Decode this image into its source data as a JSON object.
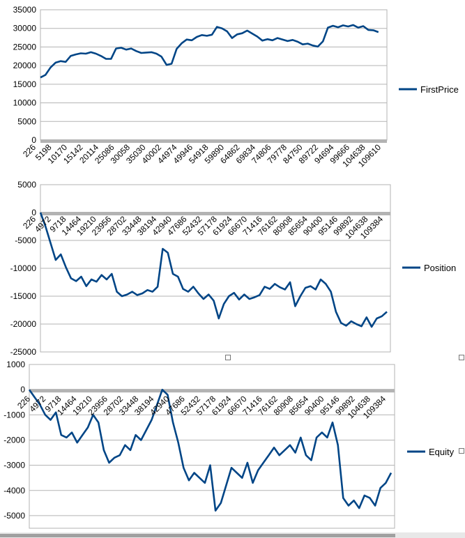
{
  "chart_data": [
    {
      "type": "line",
      "series": [
        {
          "name": "FirstPrice",
          "color": "#004586"
        }
      ],
      "ylim": [
        0,
        35000
      ],
      "yticks": [
        0,
        5000,
        10000,
        15000,
        20000,
        25000,
        30000,
        35000
      ],
      "xticks": [
        "226",
        "5198",
        "10170",
        "15142",
        "20114",
        "25086",
        "30058",
        "35030",
        "40002",
        "44974",
        "49946",
        "54918",
        "59890",
        "64862",
        "69834",
        "74806",
        "79778",
        "84750",
        "89722",
        "94694",
        "99666",
        "104638",
        "109610"
      ],
      "grid": true,
      "legend_position": "right",
      "points": [
        [
          0,
          16800
        ],
        [
          2,
          17500
        ],
        [
          4,
          19500
        ],
        [
          6,
          20800
        ],
        [
          8,
          21200
        ],
        [
          10,
          21000
        ],
        [
          12,
          22600
        ],
        [
          14,
          23000
        ],
        [
          16,
          23300
        ],
        [
          18,
          23200
        ],
        [
          20,
          23600
        ],
        [
          22,
          23200
        ],
        [
          24,
          22600
        ],
        [
          26,
          21800
        ],
        [
          28,
          21800
        ],
        [
          30,
          24600
        ],
        [
          32,
          24800
        ],
        [
          34,
          24300
        ],
        [
          36,
          24600
        ],
        [
          38,
          23900
        ],
        [
          40,
          23400
        ],
        [
          42,
          23500
        ],
        [
          44,
          23600
        ],
        [
          46,
          23200
        ],
        [
          48,
          22400
        ],
        [
          50,
          20200
        ],
        [
          52,
          20500
        ],
        [
          54,
          24500
        ],
        [
          56,
          26000
        ],
        [
          58,
          27000
        ],
        [
          60,
          26800
        ],
        [
          62,
          27700
        ],
        [
          64,
          28200
        ],
        [
          66,
          28000
        ],
        [
          68,
          28300
        ],
        [
          70,
          30400
        ],
        [
          72,
          30000
        ],
        [
          74,
          29200
        ],
        [
          76,
          27400
        ],
        [
          78,
          28400
        ],
        [
          80,
          28700
        ],
        [
          82,
          29400
        ],
        [
          84,
          28600
        ],
        [
          86,
          27800
        ],
        [
          88,
          26700
        ],
        [
          90,
          27100
        ],
        [
          92,
          26800
        ],
        [
          94,
          27400
        ],
        [
          96,
          27000
        ],
        [
          98,
          26600
        ],
        [
          100,
          26900
        ],
        [
          102,
          26400
        ],
        [
          104,
          25700
        ],
        [
          106,
          25900
        ],
        [
          108,
          25400
        ],
        [
          110,
          25100
        ],
        [
          112,
          26500
        ],
        [
          114,
          30200
        ],
        [
          116,
          30700
        ],
        [
          118,
          30300
        ],
        [
          120,
          30800
        ],
        [
          122,
          30500
        ],
        [
          124,
          30900
        ],
        [
          126,
          30200
        ],
        [
          128,
          30600
        ],
        [
          130,
          29600
        ],
        [
          132,
          29500
        ],
        [
          134,
          29000
        ]
      ]
    },
    {
      "type": "line",
      "series": [
        {
          "name": "Position",
          "color": "#004586"
        }
      ],
      "ylim": [
        -25000,
        5000
      ],
      "yticks": [
        -25000,
        -20000,
        -15000,
        -10000,
        -5000,
        0,
        5000
      ],
      "xticks": [
        "226",
        "4972",
        "9718",
        "14464",
        "19210",
        "23956",
        "28702",
        "33448",
        "38194",
        "42940",
        "47686",
        "52432",
        "57178",
        "61924",
        "66670",
        "71416",
        "76162",
        "80908",
        "85654",
        "90400",
        "95146",
        "99892",
        "104638",
        "109384"
      ],
      "grid": true,
      "legend_position": "right",
      "points": [
        [
          0,
          0
        ],
        [
          2,
          -2500
        ],
        [
          4,
          -5500
        ],
        [
          6,
          -8500
        ],
        [
          8,
          -7500
        ],
        [
          10,
          -9800
        ],
        [
          12,
          -11800
        ],
        [
          14,
          -12300
        ],
        [
          16,
          -11500
        ],
        [
          18,
          -13200
        ],
        [
          20,
          -12000
        ],
        [
          22,
          -12400
        ],
        [
          24,
          -11200
        ],
        [
          26,
          -12000
        ],
        [
          28,
          -11000
        ],
        [
          30,
          -14200
        ],
        [
          32,
          -15000
        ],
        [
          34,
          -14700
        ],
        [
          36,
          -14200
        ],
        [
          38,
          -14800
        ],
        [
          40,
          -14500
        ],
        [
          42,
          -13900
        ],
        [
          44,
          -14200
        ],
        [
          46,
          -13300
        ],
        [
          48,
          -6500
        ],
        [
          50,
          -7200
        ],
        [
          52,
          -11000
        ],
        [
          54,
          -11500
        ],
        [
          56,
          -13700
        ],
        [
          58,
          -14200
        ],
        [
          60,
          -13300
        ],
        [
          62,
          -14500
        ],
        [
          64,
          -15500
        ],
        [
          66,
          -14700
        ],
        [
          68,
          -15800
        ],
        [
          70,
          -19000
        ],
        [
          72,
          -16400
        ],
        [
          74,
          -15000
        ],
        [
          76,
          -14400
        ],
        [
          78,
          -15600
        ],
        [
          80,
          -14700
        ],
        [
          82,
          -15500
        ],
        [
          84,
          -15200
        ],
        [
          86,
          -14800
        ],
        [
          88,
          -13300
        ],
        [
          90,
          -13700
        ],
        [
          92,
          -12800
        ],
        [
          94,
          -13400
        ],
        [
          96,
          -13800
        ],
        [
          98,
          -12500
        ],
        [
          100,
          -16800
        ],
        [
          102,
          -15000
        ],
        [
          104,
          -13500
        ],
        [
          106,
          -13200
        ],
        [
          108,
          -13800
        ],
        [
          110,
          -12000
        ],
        [
          112,
          -12800
        ],
        [
          114,
          -14200
        ],
        [
          116,
          -17800
        ],
        [
          118,
          -19800
        ],
        [
          120,
          -20300
        ],
        [
          122,
          -19500
        ],
        [
          124,
          -20000
        ],
        [
          126,
          -20400
        ],
        [
          128,
          -18800
        ],
        [
          130,
          -20500
        ],
        [
          132,
          -19000
        ],
        [
          134,
          -18600
        ],
        [
          136,
          -17800
        ]
      ]
    },
    {
      "type": "line",
      "series": [
        {
          "name": "Equity",
          "color": "#004586"
        }
      ],
      "ylim": [
        -5500,
        1000
      ],
      "yticks": [
        -5000,
        -4000,
        -3000,
        -2000,
        -1000,
        0,
        1000
      ],
      "xticks": [
        "226",
        "4972",
        "9718",
        "14464",
        "19210",
        "23956",
        "28702",
        "33448",
        "38194",
        "42940",
        "47686",
        "52432",
        "57178",
        "61924",
        "66670",
        "71416",
        "76162",
        "80908",
        "85654",
        "90400",
        "95146",
        "99892",
        "104638",
        "109384"
      ],
      "grid": true,
      "legend_position": "right",
      "points": [
        [
          0,
          0
        ],
        [
          2,
          -300
        ],
        [
          4,
          -600
        ],
        [
          6,
          -1000
        ],
        [
          8,
          -1200
        ],
        [
          10,
          -900
        ],
        [
          12,
          -1800
        ],
        [
          14,
          -1900
        ],
        [
          16,
          -1700
        ],
        [
          18,
          -2100
        ],
        [
          20,
          -1800
        ],
        [
          22,
          -1500
        ],
        [
          24,
          -1000
        ],
        [
          26,
          -1300
        ],
        [
          28,
          -2400
        ],
        [
          30,
          -2900
        ],
        [
          32,
          -2700
        ],
        [
          34,
          -2600
        ],
        [
          36,
          -2200
        ],
        [
          38,
          -2400
        ],
        [
          40,
          -1800
        ],
        [
          42,
          -2000
        ],
        [
          44,
          -1600
        ],
        [
          46,
          -1200
        ],
        [
          48,
          -600
        ],
        [
          50,
          0
        ],
        [
          52,
          -200
        ],
        [
          54,
          -1300
        ],
        [
          56,
          -2100
        ],
        [
          58,
          -3100
        ],
        [
          60,
          -3600
        ],
        [
          62,
          -3300
        ],
        [
          64,
          -3500
        ],
        [
          66,
          -3700
        ],
        [
          68,
          -3000
        ],
        [
          70,
          -4800
        ],
        [
          72,
          -4500
        ],
        [
          74,
          -3800
        ],
        [
          76,
          -3100
        ],
        [
          78,
          -3300
        ],
        [
          80,
          -3500
        ],
        [
          82,
          -2900
        ],
        [
          84,
          -3700
        ],
        [
          86,
          -3200
        ],
        [
          88,
          -2900
        ],
        [
          90,
          -2600
        ],
        [
          92,
          -2300
        ],
        [
          94,
          -2600
        ],
        [
          96,
          -2400
        ],
        [
          98,
          -2200
        ],
        [
          100,
          -2500
        ],
        [
          102,
          -1900
        ],
        [
          104,
          -2600
        ],
        [
          106,
          -2800
        ],
        [
          108,
          -1900
        ],
        [
          110,
          -1700
        ],
        [
          112,
          -1900
        ],
        [
          114,
          -1300
        ],
        [
          116,
          -2200
        ],
        [
          118,
          -4300
        ],
        [
          120,
          -4600
        ],
        [
          122,
          -4400
        ],
        [
          124,
          -4700
        ],
        [
          126,
          -4200
        ],
        [
          128,
          -4300
        ],
        [
          130,
          -4600
        ],
        [
          132,
          -3900
        ],
        [
          134,
          -3700
        ],
        [
          136,
          -3300
        ]
      ]
    }
  ]
}
